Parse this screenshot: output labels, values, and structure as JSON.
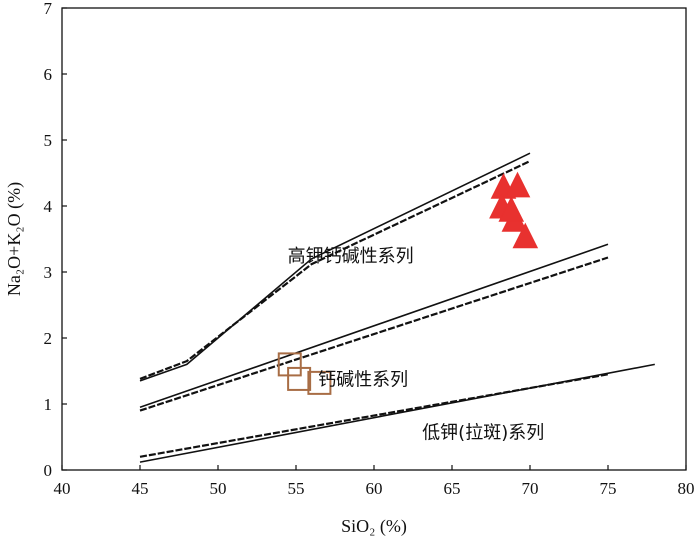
{
  "chart_data": {
    "type": "scatter",
    "title": "",
    "xlabel": "SiO₂ (%)",
    "ylabel": "Na₂O+K₂O (%)",
    "xlim": [
      40,
      80
    ],
    "ylim": [
      0,
      7
    ],
    "x_ticks": [
      "40",
      "45",
      "50",
      "55",
      "60",
      "65",
      "70",
      "75",
      "80"
    ],
    "y_ticks": [
      "0",
      "1",
      "2",
      "3",
      "4",
      "5",
      "6",
      "7"
    ],
    "grid": false,
    "legend": "none",
    "zone_labels": [
      {
        "text": "高钾钙碱性系列",
        "x": 58.5,
        "y": 3.15
      },
      {
        "text": "钙碱性系列",
        "x": 59.3,
        "y": 1.28
      },
      {
        "text": "低钾(拉斑)系列",
        "x": 67.0,
        "y": 0.48
      }
    ],
    "boundaries": [
      {
        "style": "solid",
        "points": [
          [
            45,
            1.35
          ],
          [
            48,
            1.6
          ],
          [
            56,
            3.2
          ],
          [
            70,
            4.8
          ]
        ]
      },
      {
        "style": "dashed",
        "points": [
          [
            45,
            1.38
          ],
          [
            48,
            1.65
          ],
          [
            56,
            3.12
          ],
          [
            70,
            4.68
          ]
        ]
      },
      {
        "style": "solid",
        "points": [
          [
            45,
            0.95
          ],
          [
            75,
            3.42
          ]
        ]
      },
      {
        "style": "dashed",
        "points": [
          [
            45,
            0.9
          ],
          [
            75,
            3.22
          ]
        ]
      },
      {
        "style": "solid",
        "points": [
          [
            45,
            0.12
          ],
          [
            78,
            1.6
          ]
        ]
      },
      {
        "style": "dashed",
        "points": [
          [
            45,
            0.2
          ],
          [
            75,
            1.45
          ]
        ]
      }
    ],
    "series": [
      {
        "marker": "triangle",
        "color": "#e8312f",
        "points": [
          [
            68.3,
            4.3
          ],
          [
            69.2,
            4.32
          ],
          [
            68.2,
            4.0
          ],
          [
            69.0,
            3.8
          ],
          [
            68.8,
            3.95
          ],
          [
            69.7,
            3.55
          ]
        ]
      },
      {
        "marker": "open-square",
        "color": "#a86d45",
        "points": [
          [
            54.6,
            1.6
          ],
          [
            55.2,
            1.38
          ],
          [
            56.5,
            1.32
          ]
        ]
      }
    ]
  }
}
